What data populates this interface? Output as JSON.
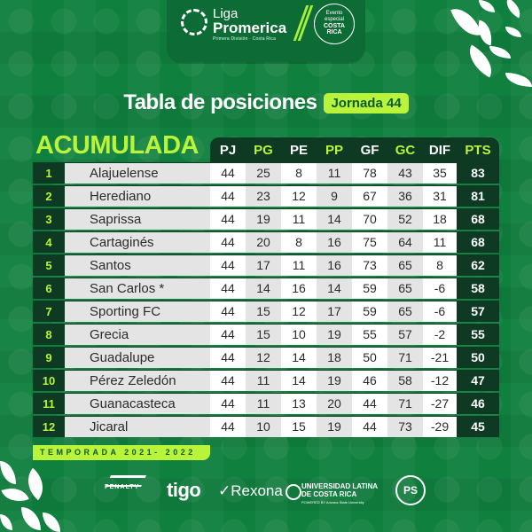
{
  "header": {
    "league_top": "Liga",
    "league_name": "Promerica",
    "league_sub": "Primera División · Costa Rica",
    "badge_line1": "Evento",
    "badge_line2": "especial",
    "badge_line3": "COSTA",
    "badge_line4": "RICA"
  },
  "title": {
    "main": "Tabla de posiciones",
    "jornada": "Jornada 44"
  },
  "table": {
    "label": "ACUMULADA",
    "columns": [
      "PJ",
      "PG",
      "PE",
      "PP",
      "GF",
      "GC",
      "DIF",
      "PTS"
    ],
    "rows": [
      {
        "pos": "1",
        "team": "Alajuelense",
        "pj": "44",
        "pg": "25",
        "pe": "8",
        "pp": "11",
        "gf": "78",
        "gc": "43",
        "dif": "35",
        "pts": "83"
      },
      {
        "pos": "2",
        "team": "Herediano",
        "pj": "44",
        "pg": "23",
        "pe": "12",
        "pp": "9",
        "gf": "67",
        "gc": "36",
        "dif": "31",
        "pts": "81"
      },
      {
        "pos": "3",
        "team": "Saprissa",
        "pj": "44",
        "pg": "19",
        "pe": "11",
        "pp": "14",
        "gf": "70",
        "gc": "52",
        "dif": "18",
        "pts": "68"
      },
      {
        "pos": "4",
        "team": "Cartaginés",
        "pj": "44",
        "pg": "20",
        "pe": "8",
        "pp": "16",
        "gf": "75",
        "gc": "64",
        "dif": "11",
        "pts": "68"
      },
      {
        "pos": "5",
        "team": "Santos",
        "pj": "44",
        "pg": "17",
        "pe": "11",
        "pp": "16",
        "gf": "73",
        "gc": "65",
        "dif": "8",
        "pts": "62"
      },
      {
        "pos": "6",
        "team": "San Carlos *",
        "pj": "44",
        "pg": "14",
        "pe": "16",
        "pp": "14",
        "gf": "59",
        "gc": "65",
        "dif": "-6",
        "pts": "58"
      },
      {
        "pos": "7",
        "team": "Sporting FC",
        "pj": "44",
        "pg": "15",
        "pe": "12",
        "pp": "17",
        "gf": "59",
        "gc": "65",
        "dif": "-6",
        "pts": "57"
      },
      {
        "pos": "8",
        "team": "Grecia",
        "pj": "44",
        "pg": "15",
        "pe": "10",
        "pp": "19",
        "gf": "55",
        "gc": "57",
        "dif": "-2",
        "pts": "55"
      },
      {
        "pos": "9",
        "team": "Guadalupe",
        "pj": "44",
        "pg": "12",
        "pe": "14",
        "pp": "18",
        "gf": "50",
        "gc": "71",
        "dif": "-21",
        "pts": "50"
      },
      {
        "pos": "10",
        "team": "Pérez Zeledón",
        "pj": "44",
        "pg": "11",
        "pe": "14",
        "pp": "19",
        "gf": "46",
        "gc": "58",
        "dif": "-12",
        "pts": "47"
      },
      {
        "pos": "11",
        "team": "Guanacasteca",
        "pj": "44",
        "pg": "11",
        "pe": "13",
        "pp": "20",
        "gf": "44",
        "gc": "71",
        "dif": "-27",
        "pts": "46"
      },
      {
        "pos": "12",
        "team": "Jicaral",
        "pj": "44",
        "pg": "10",
        "pe": "15",
        "pp": "19",
        "gf": "44",
        "gc": "73",
        "dif": "-29",
        "pts": "45"
      }
    ]
  },
  "season": "TEMPORADA 2021- 2022",
  "sponsors": {
    "penalty": "PENALTY",
    "tigo": "tigo",
    "rexona": "✓Rexona",
    "ulatina_1": "UNIVERSIDAD LATINA",
    "ulatina_2": "DE COSTA RICA",
    "ulatina_3": "POWERED BY Arizona State University",
    "ps": "PS"
  },
  "colors": {
    "background": "#10803e",
    "dark_green": "#0e3a23",
    "accent_lime": "#b9f33a",
    "row_gray": "#e4e4e4",
    "row_white": "#ffffff"
  }
}
